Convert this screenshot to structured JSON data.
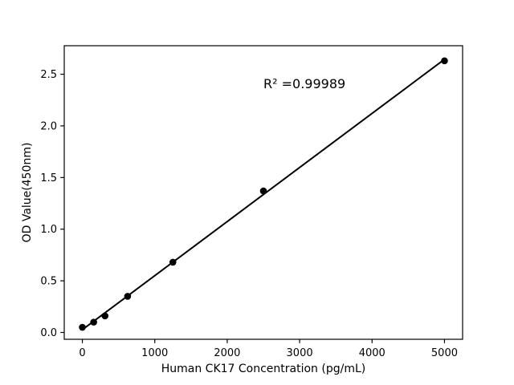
{
  "figure": {
    "background": "#ffffff",
    "foreground": "#000000",
    "title": ""
  },
  "annotation": {
    "r_squared_label": "R² =0.99989"
  },
  "chart_data": {
    "type": "scatter",
    "title": "",
    "xlabel": "Human CK17 Concentration (pg/mL)",
    "ylabel": "OD Value(450nm)",
    "x": [
      0,
      156.25,
      312.5,
      625,
      1250,
      2500,
      5000
    ],
    "y": [
      0.05,
      0.1,
      0.16,
      0.35,
      0.68,
      1.37,
      2.63
    ],
    "fit_line": "linear_regression",
    "fit_label": "R² =0.99989",
    "marker": "circle",
    "marker_color": "#000000",
    "line_color": "#000000",
    "xticks": {
      "values": [
        0,
        1000,
        2000,
        3000,
        4000,
        5000
      ],
      "labels": [
        "0",
        "1000",
        "2000",
        "3000",
        "4000",
        "5000"
      ]
    },
    "yticks": {
      "values": [
        0,
        0.5,
        1.0,
        1.5,
        2.0,
        2.5
      ],
      "labels": [
        "0.0",
        "0.5",
        "1.0",
        "1.5",
        "2.0",
        "2.5"
      ]
    },
    "xlim": [
      -250,
      5250
    ],
    "ylim": [
      -0.066,
      2.776
    ],
    "grid": false,
    "legend": null
  }
}
